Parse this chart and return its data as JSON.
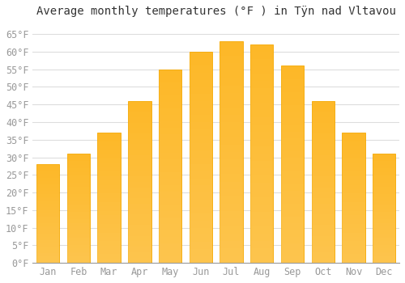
{
  "title": "Average monthly temperatures (°F ) in Tÿn nad Vltavou",
  "months": [
    "Jan",
    "Feb",
    "Mar",
    "Apr",
    "May",
    "Jun",
    "Jul",
    "Aug",
    "Sep",
    "Oct",
    "Nov",
    "Dec"
  ],
  "values": [
    28,
    31,
    37,
    46,
    55,
    60,
    63,
    62,
    56,
    46,
    37,
    31
  ],
  "bar_color": "#FDB827",
  "bar_edge_color": "#F5A800",
  "background_color": "#FFFFFF",
  "grid_color": "#DDDDDD",
  "ylim": [
    0,
    68
  ],
  "yticks": [
    0,
    5,
    10,
    15,
    20,
    25,
    30,
    35,
    40,
    45,
    50,
    55,
    60,
    65
  ],
  "title_fontsize": 10,
  "tick_fontsize": 8.5,
  "tick_color": "#999999",
  "title_color": "#333333"
}
